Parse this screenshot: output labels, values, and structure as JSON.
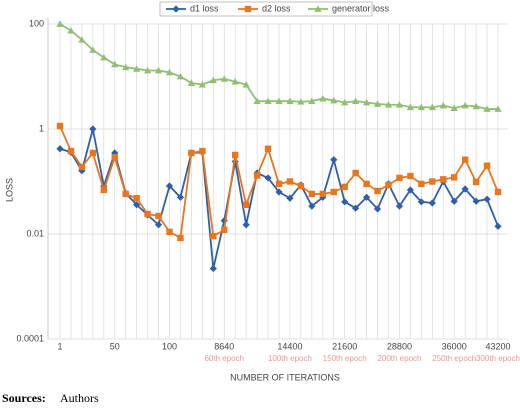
{
  "chart_data": {
    "type": "line",
    "x_label": "NUMBER OF ITERATIONS",
    "y_label": "LOSS",
    "categories": [
      "1",
      null,
      null,
      null,
      null,
      "50",
      null,
      null,
      null,
      null,
      "100",
      null,
      null,
      null,
      null,
      "8640",
      null,
      null,
      null,
      null,
      null,
      "14400",
      null,
      null,
      null,
      null,
      "21600",
      null,
      null,
      null,
      null,
      "28800",
      null,
      null,
      null,
      null,
      "36000",
      null,
      null,
      null,
      "43200"
    ],
    "x_annotations": [
      null,
      null,
      null,
      null,
      null,
      null,
      null,
      null,
      null,
      null,
      null,
      null,
      null,
      null,
      null,
      "60th epoch",
      null,
      null,
      null,
      null,
      null,
      "100th epoch",
      null,
      null,
      null,
      null,
      "150th epoch",
      null,
      null,
      null,
      null,
      "200th epoch",
      null,
      null,
      null,
      null,
      "250th epoch",
      null,
      null,
      null,
      "300th epoch"
    ],
    "annotation_color": "#e89a92",
    "log_y": true,
    "ylim": [
      0.0001,
      100
    ],
    "yticks": [
      0.0001,
      0.01,
      1,
      100
    ],
    "grid": true,
    "legend": "top",
    "series": [
      {
        "name": "d1 loss",
        "color": "#2e5fa8",
        "marker": "diamond",
        "values": [
          0.42,
          0.36,
          0.16,
          1,
          0.082,
          0.35,
          0.06,
          0.036,
          0.023,
          0.015,
          0.082,
          0.05,
          0.35,
          0.36,
          0.0022,
          0.018,
          0.24,
          0.015,
          0.145,
          0.117,
          0.063,
          0.048,
          0.086,
          0.034,
          0.05,
          0.26,
          0.041,
          0.031,
          0.05,
          0.03,
          0.09,
          0.034,
          0.069,
          0.041,
          0.039,
          0.1,
          0.042,
          0.072,
          0.042,
          0.046,
          0.014
        ]
      },
      {
        "name": "d2 loss",
        "color": "#e8761e",
        "marker": "square",
        "values": [
          1.14,
          0.38,
          0.19,
          0.35,
          0.069,
          0.29,
          0.058,
          0.048,
          0.024,
          0.022,
          0.011,
          0.0084,
          0.35,
          0.38,
          0.0091,
          0.012,
          0.32,
          0.036,
          0.13,
          0.42,
          0.09,
          0.1,
          0.082,
          0.058,
          0.058,
          0.063,
          0.079,
          0.145,
          0.09,
          0.066,
          0.086,
          0.117,
          0.127,
          0.09,
          0.1,
          0.11,
          0.12,
          0.26,
          0.098,
          0.2,
          0.063
        ]
      },
      {
        "name": "generator loss",
        "color": "#8fbf73",
        "marker": "triangle",
        "values": [
          100,
          75,
          50,
          32,
          23,
          17,
          15,
          14,
          13,
          13,
          12,
          10,
          7.5,
          7,
          8.5,
          9,
          8,
          7,
          3.4,
          3.4,
          3.4,
          3.4,
          3.3,
          3.4,
          3.8,
          3.5,
          3.2,
          3.4,
          3.2,
          3,
          2.9,
          2.9,
          2.6,
          2.6,
          2.6,
          2.8,
          2.5,
          2.8,
          2.7,
          2.4,
          2.4
        ]
      }
    ],
    "source": {
      "label": "Sources:",
      "text": "Authors"
    }
  }
}
